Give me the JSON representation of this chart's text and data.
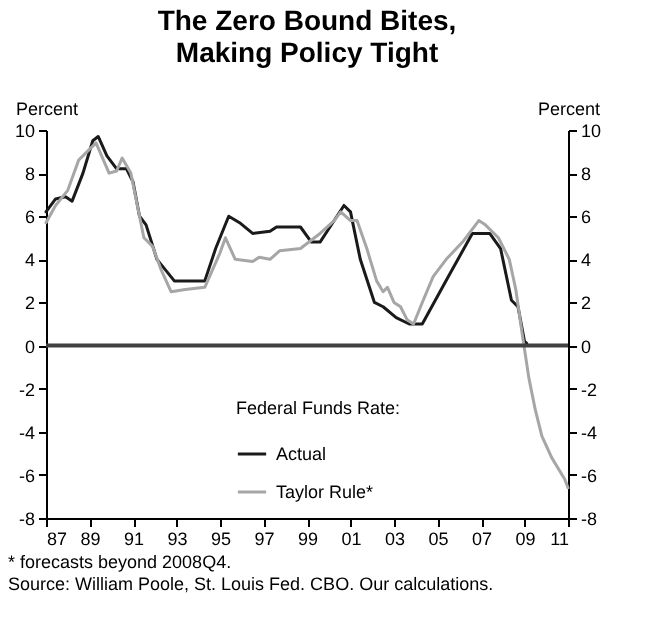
{
  "chart_data": {
    "type": "line",
    "title": "The Zero Bound Bites, Making Policy Tight",
    "ylabel": "Percent",
    "y2label": "Percent",
    "legend_title": "Federal Funds Rate:",
    "xlim": [
      1987,
      2011
    ],
    "xticks": [
      {
        "value": 1987,
        "label": "87"
      },
      {
        "value": 1989,
        "label": "89"
      },
      {
        "value": 1991,
        "label": "91"
      },
      {
        "value": 1993,
        "label": "93"
      },
      {
        "value": 1995,
        "label": "95"
      },
      {
        "value": 1997,
        "label": "97"
      },
      {
        "value": 1999,
        "label": "99"
      },
      {
        "value": 2001,
        "label": "01"
      },
      {
        "value": 2003,
        "label": "03"
      },
      {
        "value": 2005,
        "label": "05"
      },
      {
        "value": 2007,
        "label": "07"
      },
      {
        "value": 2009,
        "label": "09"
      },
      {
        "value": 2011,
        "label": "11"
      }
    ],
    "ylim": [
      -8,
      10
    ],
    "yticks": [
      -8,
      -6,
      -4,
      -2,
      0,
      2,
      4,
      6,
      8,
      10
    ],
    "y2lim": [
      -8,
      10
    ],
    "y2ticks": [
      -8,
      -6,
      -4,
      -2,
      0,
      2,
      4,
      6,
      8,
      10
    ],
    "grid": false,
    "legend": "bottom",
    "marker": "none",
    "line_style": "solid",
    "ref_lines": [
      {
        "axis": "y",
        "value": 0,
        "color": "#404040"
      }
    ],
    "series": [
      {
        "name": "Actual",
        "color": "#1a1a1a",
        "x": [
          1987.0,
          1987.44,
          1987.9,
          1988.2,
          1988.7,
          1989.15,
          1989.4,
          1989.8,
          1990.25,
          1990.7,
          1991.0,
          1991.3,
          1991.6,
          1992.1,
          1992.9,
          1993.5,
          1994.3,
          1994.8,
          1995.4,
          1995.9,
          1996.5,
          1997.3,
          1997.6,
          1998.7,
          1999.2,
          1999.6,
          2000.25,
          2000.7,
          2001.0,
          2001.45,
          2002.1,
          2002.5,
          2003.1,
          2003.7,
          2004.3,
          2005.5,
          2006.6,
          2007.4,
          2007.9,
          2008.4,
          2008.7,
          2009.0,
          2009.1
        ],
        "values": [
          6.2,
          6.8,
          6.9,
          6.7,
          8.0,
          9.5,
          9.7,
          8.8,
          8.2,
          8.2,
          7.6,
          6.0,
          5.6,
          4.0,
          3.0,
          3.0,
          3.0,
          4.5,
          6.0,
          5.7,
          5.2,
          5.3,
          5.5,
          5.5,
          4.8,
          4.8,
          5.8,
          6.5,
          6.2,
          4.0,
          2.0,
          1.8,
          1.3,
          1.0,
          1.0,
          3.2,
          5.2,
          5.2,
          4.5,
          2.1,
          1.8,
          0.2,
          0.1
        ]
      },
      {
        "name": "Taylor Rule*",
        "color": "#a6a6a6",
        "x": [
          1987.0,
          1987.44,
          1988.0,
          1988.5,
          1989.3,
          1989.9,
          1990.25,
          1990.5,
          1990.9,
          1991.2,
          1991.5,
          1991.9,
          1992.3,
          1992.75,
          1993.4,
          1994.3,
          1995.0,
          1995.25,
          1995.7,
          1996.5,
          1996.8,
          1997.3,
          1997.75,
          1998.7,
          1999.6,
          2000.25,
          2000.55,
          2001.0,
          2001.3,
          2001.75,
          2002.2,
          2002.5,
          2002.7,
          2003.0,
          2003.3,
          2003.6,
          2003.9,
          2004.3,
          2004.8,
          2005.4,
          2006.15,
          2006.9,
          2007.2,
          2007.8,
          2008.3,
          2008.6,
          2008.9,
          2009.2,
          2009.5,
          2009.8,
          2010.25,
          2010.85,
          2011.0
        ],
        "values": [
          5.7,
          6.5,
          7.2,
          8.6,
          9.4,
          8.0,
          8.1,
          8.7,
          8.0,
          6.5,
          5.0,
          4.6,
          3.5,
          2.5,
          2.6,
          2.7,
          4.3,
          5.0,
          4.0,
          3.9,
          4.1,
          4.0,
          4.4,
          4.5,
          5.2,
          5.8,
          6.2,
          5.8,
          5.8,
          4.5,
          3.0,
          2.5,
          2.7,
          2.0,
          1.8,
          1.2,
          1.0,
          2.0,
          3.2,
          4.0,
          4.8,
          5.8,
          5.6,
          5.0,
          4.0,
          2.6,
          0.5,
          -1.5,
          -3.0,
          -4.2,
          -5.2,
          -6.2,
          -6.6
        ]
      }
    ],
    "annotations": [
      "* forecasts beyond 2008Q4.",
      "Source: William Poole, St. Louis Fed. CBO. Our calculations."
    ]
  }
}
